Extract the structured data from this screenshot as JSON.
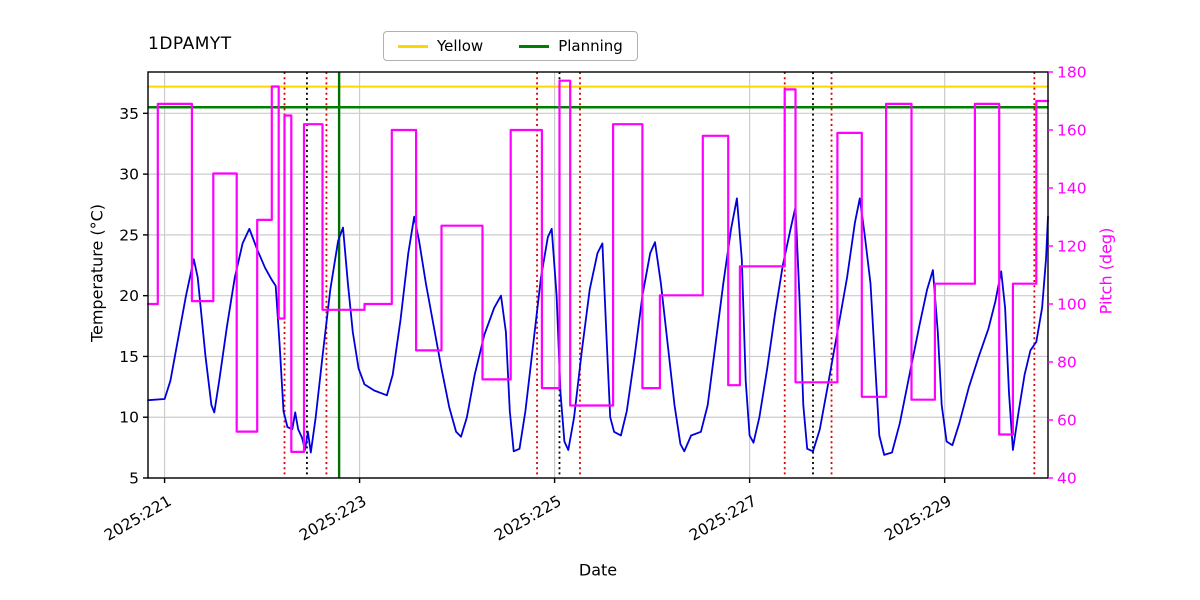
{
  "chart_data": {
    "type": "line",
    "title": "1DPAMYT",
    "xlabel": "Date",
    "ylabel_left": "Temperature (°C)",
    "ylabel_right": "Pitch (deg)",
    "right_axis_color": "#ff00ff",
    "grid": true,
    "xlim": [
      220.83,
      230.06
    ],
    "ylim_left": [
      5,
      38.4
    ],
    "ylim_right": [
      40,
      180
    ],
    "xticks": [
      {
        "value": 221,
        "label": "2025:221"
      },
      {
        "value": 223,
        "label": "2025:223"
      },
      {
        "value": 225,
        "label": "2025:225"
      },
      {
        "value": 227,
        "label": "2025:227"
      },
      {
        "value": 229,
        "label": "2025:229"
      }
    ],
    "yticks_left": [
      5,
      10,
      15,
      20,
      25,
      30,
      35
    ],
    "yticks_right": [
      40,
      60,
      80,
      100,
      120,
      140,
      160,
      180
    ],
    "legend": [
      {
        "label": "Yellow",
        "color": "#ffd700"
      },
      {
        "label": "Planning",
        "color": "#008000"
      }
    ],
    "limit_lines": [
      {
        "name": "yellow-limit",
        "value": 37.2,
        "color": "#ffd700",
        "width": 2
      },
      {
        "name": "planning-limit",
        "value": 35.5,
        "color": "#008000",
        "width": 2.5
      }
    ],
    "vertical_lines": [
      {
        "name": "red-dotted",
        "color": "#dd0000",
        "style": "dotted",
        "width": 1.8,
        "x": [
          222.23,
          222.66,
          224.82,
          225.26,
          227.36,
          227.84,
          229.92
        ]
      },
      {
        "name": "black-dotted",
        "color": "#000000",
        "style": "dotted",
        "width": 1.8,
        "x": [
          222.46,
          225.05,
          227.65
        ]
      },
      {
        "name": "green-solid",
        "color": "#007000",
        "style": "solid",
        "width": 2.4,
        "x": [
          222.79
        ]
      }
    ],
    "series": [
      {
        "name": "Temperature",
        "axis": "left",
        "style": "line",
        "color": "#0000dd",
        "width": 1.8,
        "points": [
          [
            220.83,
            11.4
          ],
          [
            221.0,
            11.5
          ],
          [
            221.06,
            13.0
          ],
          [
            221.14,
            16.5
          ],
          [
            221.22,
            20.0
          ],
          [
            221.3,
            23.0
          ],
          [
            221.34,
            21.5
          ],
          [
            221.42,
            15.0
          ],
          [
            221.48,
            11.0
          ],
          [
            221.51,
            10.4
          ],
          [
            221.56,
            13.0
          ],
          [
            221.64,
            17.5
          ],
          [
            221.72,
            21.5
          ],
          [
            221.8,
            24.3
          ],
          [
            221.87,
            25.5
          ],
          [
            221.95,
            23.8
          ],
          [
            222.03,
            22.3
          ],
          [
            222.1,
            21.3
          ],
          [
            222.14,
            20.8
          ],
          [
            222.18,
            16.0
          ],
          [
            222.22,
            10.5
          ],
          [
            222.26,
            9.2
          ],
          [
            222.31,
            9.0
          ],
          [
            222.34,
            10.4
          ],
          [
            222.37,
            9.0
          ],
          [
            222.41,
            8.3
          ],
          [
            222.44,
            7.3
          ],
          [
            222.47,
            8.8
          ],
          [
            222.5,
            7.1
          ],
          [
            222.55,
            10.0
          ],
          [
            222.62,
            15.0
          ],
          [
            222.7,
            20.5
          ],
          [
            222.78,
            24.5
          ],
          [
            222.83,
            25.6
          ],
          [
            222.88,
            21.0
          ],
          [
            222.93,
            17.0
          ],
          [
            222.99,
            14.0
          ],
          [
            223.05,
            12.7
          ],
          [
            223.15,
            12.2
          ],
          [
            223.28,
            11.8
          ],
          [
            223.34,
            13.5
          ],
          [
            223.42,
            18.0
          ],
          [
            223.5,
            23.5
          ],
          [
            223.56,
            26.5
          ],
          [
            223.61,
            24.5
          ],
          [
            223.68,
            21.0
          ],
          [
            223.76,
            17.5
          ],
          [
            223.84,
            14.0
          ],
          [
            223.92,
            10.8
          ],
          [
            223.99,
            8.8
          ],
          [
            224.04,
            8.4
          ],
          [
            224.1,
            10.0
          ],
          [
            224.18,
            13.5
          ],
          [
            224.28,
            16.8
          ],
          [
            224.38,
            19.0
          ],
          [
            224.45,
            20.0
          ],
          [
            224.5,
            17.0
          ],
          [
            224.54,
            10.5
          ],
          [
            224.58,
            7.2
          ],
          [
            224.64,
            7.4
          ],
          [
            224.7,
            10.5
          ],
          [
            224.78,
            16.0
          ],
          [
            224.86,
            21.5
          ],
          [
            224.93,
            24.8
          ],
          [
            224.97,
            25.5
          ],
          [
            225.02,
            20.0
          ],
          [
            225.06,
            12.0
          ],
          [
            225.1,
            8.0
          ],
          [
            225.14,
            7.3
          ],
          [
            225.2,
            10.0
          ],
          [
            225.28,
            15.5
          ],
          [
            225.36,
            20.5
          ],
          [
            225.44,
            23.5
          ],
          [
            225.49,
            24.3
          ],
          [
            225.53,
            17.0
          ],
          [
            225.57,
            10.0
          ],
          [
            225.61,
            8.8
          ],
          [
            225.68,
            8.5
          ],
          [
            225.74,
            10.5
          ],
          [
            225.82,
            15.0
          ],
          [
            225.9,
            20.0
          ],
          [
            225.98,
            23.5
          ],
          [
            226.03,
            24.4
          ],
          [
            226.09,
            21.0
          ],
          [
            226.16,
            16.0
          ],
          [
            226.23,
            11.0
          ],
          [
            226.29,
            7.8
          ],
          [
            226.33,
            7.2
          ],
          [
            226.4,
            8.5
          ],
          [
            226.5,
            8.8
          ],
          [
            226.57,
            11.0
          ],
          [
            226.65,
            16.0
          ],
          [
            226.73,
            21.0
          ],
          [
            226.81,
            25.5
          ],
          [
            226.87,
            28.0
          ],
          [
            226.92,
            23.0
          ],
          [
            226.96,
            13.0
          ],
          [
            227.0,
            8.5
          ],
          [
            227.04,
            7.9
          ],
          [
            227.1,
            10.0
          ],
          [
            227.18,
            14.0
          ],
          [
            227.26,
            18.5
          ],
          [
            227.34,
            22.5
          ],
          [
            227.42,
            25.5
          ],
          [
            227.47,
            27.3
          ],
          [
            227.51,
            20.0
          ],
          [
            227.55,
            11.0
          ],
          [
            227.59,
            7.4
          ],
          [
            227.65,
            7.2
          ],
          [
            227.72,
            9.0
          ],
          [
            227.8,
            12.5
          ],
          [
            227.9,
            17.0
          ],
          [
            228.0,
            21.5
          ],
          [
            228.08,
            26.0
          ],
          [
            228.13,
            28.0
          ],
          [
            228.18,
            25.0
          ],
          [
            228.24,
            21.0
          ],
          [
            228.29,
            14.0
          ],
          [
            228.33,
            8.5
          ],
          [
            228.38,
            6.9
          ],
          [
            228.46,
            7.1
          ],
          [
            228.54,
            9.5
          ],
          [
            228.64,
            13.5
          ],
          [
            228.74,
            17.5
          ],
          [
            228.82,
            20.5
          ],
          [
            228.88,
            22.1
          ],
          [
            228.93,
            17.0
          ],
          [
            228.97,
            11.0
          ],
          [
            229.02,
            8.0
          ],
          [
            229.08,
            7.7
          ],
          [
            229.15,
            9.5
          ],
          [
            229.25,
            12.5
          ],
          [
            229.35,
            15.0
          ],
          [
            229.45,
            17.3
          ],
          [
            229.52,
            19.5
          ],
          [
            229.58,
            22.0
          ],
          [
            229.62,
            19.0
          ],
          [
            229.66,
            12.0
          ],
          [
            229.7,
            7.3
          ],
          [
            229.76,
            10.5
          ],
          [
            229.82,
            13.5
          ],
          [
            229.88,
            15.5
          ],
          [
            229.94,
            16.2
          ],
          [
            230.0,
            19.0
          ],
          [
            230.04,
            23.0
          ],
          [
            230.06,
            26.5
          ]
        ]
      },
      {
        "name": "Pitch",
        "axis": "right",
        "style": "step",
        "color": "#ff00ff",
        "width": 2.2,
        "points": [
          [
            220.83,
            100
          ],
          [
            220.93,
            169
          ],
          [
            221.28,
            101
          ],
          [
            221.5,
            145
          ],
          [
            221.74,
            56
          ],
          [
            221.95,
            129
          ],
          [
            222.1,
            175
          ],
          [
            222.17,
            95
          ],
          [
            222.23,
            165
          ],
          [
            222.3,
            49
          ],
          [
            222.43,
            162
          ],
          [
            222.62,
            98
          ],
          [
            223.05,
            100
          ],
          [
            223.33,
            160
          ],
          [
            223.58,
            84
          ],
          [
            223.84,
            127
          ],
          [
            224.26,
            74
          ],
          [
            224.55,
            160
          ],
          [
            224.87,
            71
          ],
          [
            225.05,
            177
          ],
          [
            225.16,
            65
          ],
          [
            225.6,
            162
          ],
          [
            225.9,
            71
          ],
          [
            226.08,
            103
          ],
          [
            226.52,
            158
          ],
          [
            226.78,
            72
          ],
          [
            226.9,
            113
          ],
          [
            227.36,
            174
          ],
          [
            227.47,
            73
          ],
          [
            227.9,
            159
          ],
          [
            228.15,
            68
          ],
          [
            228.4,
            169
          ],
          [
            228.66,
            67
          ],
          [
            228.9,
            107
          ],
          [
            229.31,
            169
          ],
          [
            229.56,
            55
          ],
          [
            229.7,
            107
          ],
          [
            229.94,
            170
          ],
          [
            230.06,
            170
          ]
        ]
      }
    ]
  }
}
